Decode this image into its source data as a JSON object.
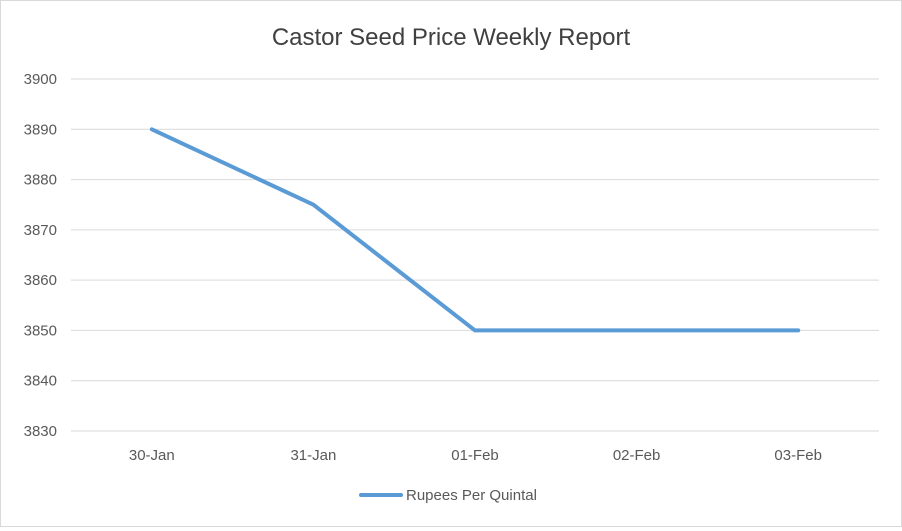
{
  "chart_data": {
    "type": "line",
    "title": "Castor Seed Price Weekly Report",
    "xlabel": "",
    "ylabel": "",
    "categories": [
      "30-Jan",
      "31-Jan",
      "01-Feb",
      "02-Feb",
      "03-Feb"
    ],
    "series": [
      {
        "name": "Rupees Per Quintal",
        "values": [
          3890,
          3875,
          3850,
          3850,
          3850
        ],
        "color": "#5b9bd5"
      }
    ],
    "ylim": [
      3830,
      3900
    ],
    "yticks": [
      3830,
      3840,
      3850,
      3860,
      3870,
      3880,
      3890,
      3900
    ],
    "grid": true,
    "legend_position": "bottom"
  }
}
